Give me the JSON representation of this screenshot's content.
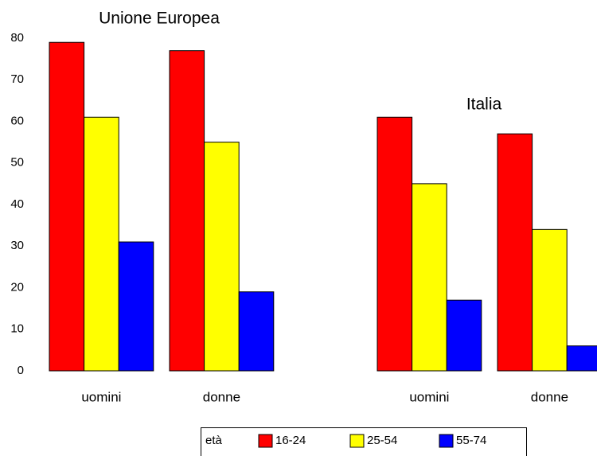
{
  "chart_data": {
    "type": "bar",
    "group_titles": [
      "Unione Europea",
      "Italia"
    ],
    "categories": [
      "uomini",
      "donne",
      "uomini",
      "donne"
    ],
    "series": [
      {
        "name": "16-24",
        "color": "#ff0000",
        "values": [
          79,
          77,
          61,
          57
        ]
      },
      {
        "name": "25-54",
        "color": "#ffff00",
        "values": [
          61,
          55,
          45,
          34
        ]
      },
      {
        "name": "55-74",
        "color": "#0000ff",
        "values": [
          31,
          19,
          17,
          6
        ]
      }
    ],
    "legend_title": "età",
    "ylim": [
      0,
      80
    ],
    "yticks": [
      0,
      10,
      20,
      30,
      40,
      50,
      60,
      70,
      80
    ],
    "grid": false
  }
}
